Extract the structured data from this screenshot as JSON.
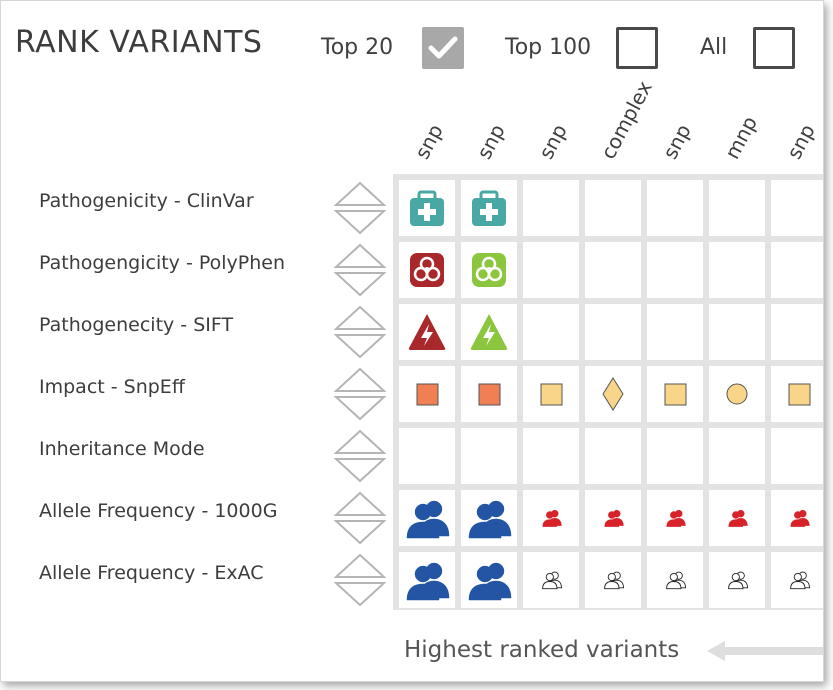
{
  "title": "RANK VARIANTS",
  "filters": [
    {
      "label": "Top 20",
      "checked": true
    },
    {
      "label": "Top 100",
      "checked": false
    },
    {
      "label": "All",
      "checked": false
    }
  ],
  "columns": [
    "snp",
    "snp",
    "snp",
    "complex",
    "snp",
    "mnp",
    "snp"
  ],
  "rows": [
    {
      "label": "Pathogenicity - ClinVar",
      "cells": [
        "clinvar-teal",
        "clinvar-teal",
        "",
        "",
        "",
        "",
        ""
      ]
    },
    {
      "label": "Pathogengicity - PolyPhen",
      "cells": [
        "biohazard-red",
        "biohazard-green",
        "",
        "",
        "",
        "",
        ""
      ]
    },
    {
      "label": "Pathogenecity - SIFT",
      "cells": [
        "sift-red",
        "sift-green",
        "",
        "",
        "",
        "",
        ""
      ]
    },
    {
      "label": "Impact - SnpEff",
      "cells": [
        "square-orange",
        "square-orange",
        "square-yellow",
        "diamond-yellow",
        "square-yellow",
        "circle-yellow",
        "square-yellow"
      ]
    },
    {
      "label": "Inheritance Mode",
      "cells": [
        "",
        "",
        "",
        "",
        "",
        "",
        ""
      ]
    },
    {
      "label": "Allele Frequency - 1000G",
      "cells": [
        "people-blue",
        "people-blue",
        "people-red",
        "people-red",
        "people-red",
        "people-red",
        "people-red"
      ]
    },
    {
      "label": "Allele Frequency - ExAC",
      "cells": [
        "people-blue",
        "people-blue",
        "people-outline",
        "people-outline",
        "people-outline",
        "people-outline",
        "people-outline"
      ]
    }
  ],
  "footer": "Highest ranked variants",
  "colors": {
    "teal": "#4aa8a4",
    "red": "#a8282c",
    "green": "#8cc63e",
    "orange": "#f07f53",
    "yellow": "#f8d588",
    "blue": "#2355a4",
    "bright_red": "#d8222a",
    "arrow_gray": "#dedede",
    "grid": "#e3e3e3"
  }
}
